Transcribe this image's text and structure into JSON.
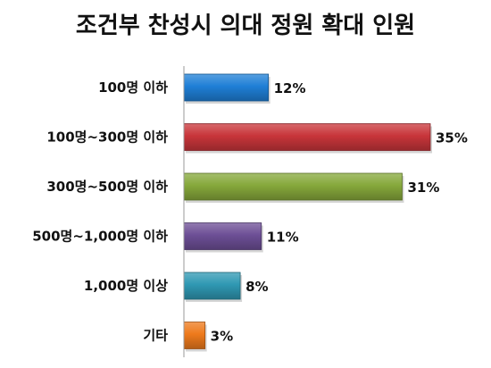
{
  "chart_data": {
    "type": "bar",
    "orientation": "horizontal",
    "title": "조건부 찬성시 의대 정원 확대 인원",
    "categories": [
      "100명 이하",
      "100명~300명 이하",
      "300명~500명 이하",
      "500명~1,000명 이하",
      "1,000명 이상",
      "기타"
    ],
    "values": [
      12,
      35,
      31,
      11,
      8,
      3
    ],
    "value_labels": [
      "12%",
      "35%",
      "31%",
      "11%",
      "8%",
      "3%"
    ],
    "colors": [
      "#1f7fd6",
      "#c8353a",
      "#86a83b",
      "#6d4f96",
      "#2f98b3",
      "#ee7a1c"
    ],
    "xlim": [
      0,
      35
    ],
    "grid": false,
    "legend": "none"
  }
}
